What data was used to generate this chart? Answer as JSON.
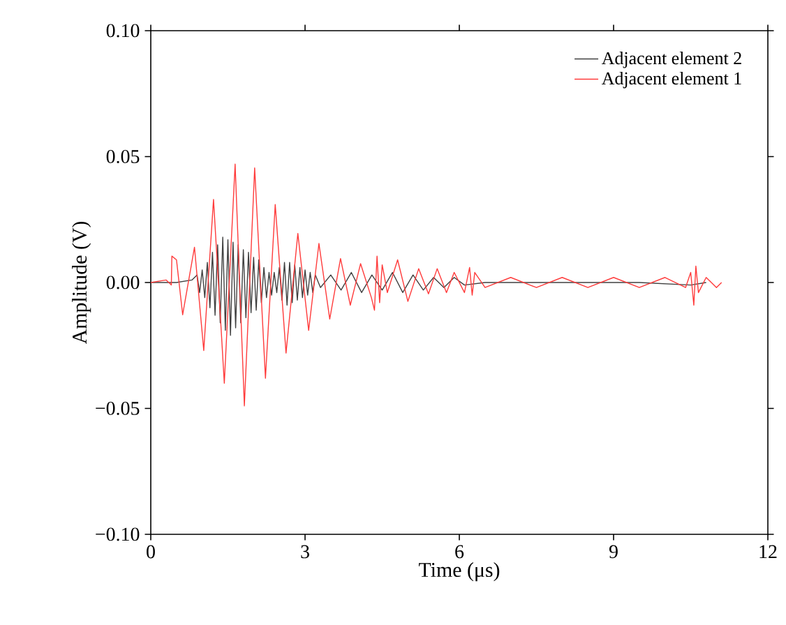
{
  "chart_data": {
    "type": "line",
    "xlabel": "Time (μs)",
    "ylabel": "Amplitude (V)",
    "xlim": [
      0,
      12
    ],
    "xticks": [
      0,
      3,
      6,
      9,
      12
    ],
    "ylim": [
      -0.1,
      0.1
    ],
    "yticks": [
      {
        "value": -0.1,
        "label": "−0.10"
      },
      {
        "value": -0.05,
        "label": "−0.05"
      },
      {
        "value": 0,
        "label": "0.00"
      },
      {
        "value": 0.05,
        "label": "0.05"
      },
      {
        "value": 0.1,
        "label": "0.10"
      }
    ],
    "legend": "top right",
    "grid": false,
    "marker": "none",
    "line_style": "solid",
    "series": [
      {
        "name": "Adjacent element 2",
        "color": "#404040",
        "x": [
          0,
          0.5,
          0.8,
          0.9,
          0.95,
          1.0,
          1.05,
          1.1,
          1.15,
          1.2,
          1.25,
          1.3,
          1.35,
          1.4,
          1.45,
          1.5,
          1.55,
          1.6,
          1.65,
          1.7,
          1.75,
          1.8,
          1.85,
          1.9,
          1.95,
          2.0,
          2.05,
          2.1,
          2.15,
          2.2,
          2.25,
          2.3,
          2.35,
          2.4,
          2.45,
          2.5,
          2.55,
          2.6,
          2.65,
          2.7,
          2.75,
          2.8,
          2.85,
          2.9,
          2.95,
          3.0,
          3.05,
          3.1,
          3.15,
          3.2,
          3.3,
          3.5,
          3.7,
          3.9,
          4.1,
          4.3,
          4.5,
          4.7,
          4.9,
          5.1,
          5.3,
          5.5,
          5.7,
          5.9,
          6.1,
          6.5,
          7.5,
          8.5,
          9.5,
          10.5,
          10.8
        ],
        "values": [
          0,
          0,
          0.001,
          0.003,
          -0.004,
          0.005,
          -0.006,
          0.008,
          -0.01,
          0.012,
          -0.013,
          0.015,
          -0.016,
          0.018,
          -0.019,
          0.017,
          -0.021,
          0.016,
          -0.018,
          0.015,
          -0.016,
          0.013,
          -0.014,
          0.012,
          -0.012,
          0.01,
          -0.011,
          0.009,
          -0.008,
          0.006,
          -0.006,
          0.004,
          -0.005,
          0.004,
          -0.004,
          0.006,
          -0.007,
          0.008,
          -0.009,
          0.008,
          -0.008,
          0.007,
          -0.007,
          0.006,
          -0.006,
          0.005,
          -0.005,
          0.004,
          -0.004,
          0.003,
          -0.002,
          0.003,
          -0.003,
          0.004,
          -0.004,
          0.003,
          -0.003,
          0.004,
          -0.004,
          0.003,
          -0.003,
          0.002,
          -0.002,
          0.002,
          -0.001,
          0,
          0,
          0,
          0,
          -0.001,
          0
        ]
      },
      {
        "name": "Adjacent element 1",
        "color": "#ff3b3b",
        "x": [
          0,
          0.3,
          0.4,
          0.41,
          0.5,
          0.62,
          0.85,
          1.03,
          1.22,
          1.43,
          1.64,
          1.82,
          2.02,
          2.23,
          2.42,
          2.63,
          2.86,
          3.07,
          3.27,
          3.48,
          3.69,
          3.88,
          4.08,
          4.29,
          4.35,
          4.4,
          4.45,
          4.5,
          4.6,
          4.8,
          5.0,
          5.21,
          5.4,
          5.57,
          5.75,
          5.9,
          6.1,
          6.2,
          6.25,
          6.3,
          6.5,
          7.0,
          7.5,
          8.0,
          8.5,
          9.0,
          9.5,
          10.0,
          10.4,
          10.5,
          10.56,
          10.6,
          10.65,
          10.8,
          11.0,
          11.1
        ],
        "values": [
          0,
          0.001,
          -0.001,
          0.0105,
          0.009,
          -0.0128,
          0.014,
          -0.027,
          0.033,
          -0.04,
          0.047,
          -0.049,
          0.0455,
          -0.038,
          0.031,
          -0.028,
          0.0195,
          -0.019,
          0.0155,
          -0.0145,
          0.0095,
          -0.009,
          0.0075,
          -0.006,
          -0.011,
          0.0105,
          -0.008,
          0.007,
          -0.004,
          0.009,
          -0.0075,
          0.0055,
          -0.0045,
          0.0055,
          -0.004,
          0.004,
          -0.004,
          0.006,
          -0.005,
          0.004,
          -0.002,
          0.002,
          -0.002,
          0.002,
          -0.002,
          0.002,
          -0.002,
          0.002,
          -0.002,
          0.004,
          -0.009,
          0.0065,
          -0.004,
          0.002,
          -0.002,
          0
        ]
      }
    ]
  }
}
